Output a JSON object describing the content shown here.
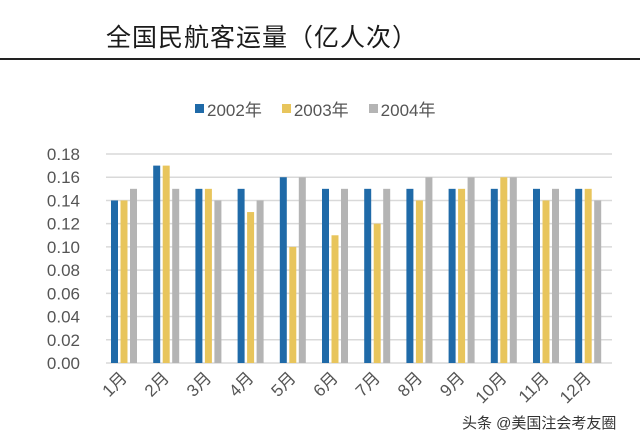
{
  "chart_data": {
    "type": "bar",
    "title": "全国民航客运量（亿人次）",
    "xlabel": "",
    "ylabel": "",
    "categories": [
      "1月",
      "2月",
      "3月",
      "4月",
      "5月",
      "6月",
      "7月",
      "8月",
      "9月",
      "10月",
      "11月",
      "12月"
    ],
    "series": [
      {
        "name": "2002年",
        "color": "#1f6aa8",
        "values": [
          0.14,
          0.17,
          0.15,
          0.15,
          0.16,
          0.15,
          0.15,
          0.15,
          0.15,
          0.15,
          0.15,
          0.15
        ]
      },
      {
        "name": "2003年",
        "color": "#e8c55c",
        "values": [
          0.14,
          0.17,
          0.15,
          0.13,
          0.1,
          0.11,
          0.12,
          0.14,
          0.15,
          0.16,
          0.14,
          0.15
        ]
      },
      {
        "name": "2004年",
        "color": "#b4b4b4",
        "values": [
          0.15,
          0.15,
          0.14,
          0.14,
          0.16,
          0.15,
          0.15,
          0.16,
          0.16,
          0.16,
          0.15,
          0.14
        ]
      }
    ],
    "ylim": [
      0,
      0.18
    ],
    "yticks": [
      "0.00",
      "0.02",
      "0.04",
      "0.06",
      "0.08",
      "0.10",
      "0.12",
      "0.14",
      "0.16",
      "0.18"
    ],
    "grid": true,
    "legend": "top"
  },
  "watermark": "头条 @美国注会考友圈"
}
